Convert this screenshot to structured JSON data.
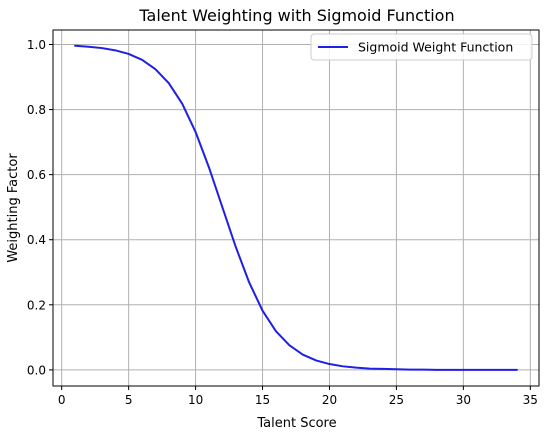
{
  "chart_data": {
    "type": "line",
    "title": "Talent Weighting with Sigmoid Function",
    "xlabel": "Talent Score",
    "ylabel": "Weighting Factor",
    "xlim": [
      -0.65,
      35.65
    ],
    "ylim": [
      -0.0495,
      1.0445
    ],
    "xticks": [
      0,
      5,
      10,
      15,
      20,
      25,
      30,
      35
    ],
    "yticks": [
      0.0,
      0.2,
      0.4,
      0.6,
      0.8,
      1.0
    ],
    "xtick_labels": [
      "0",
      "5",
      "10",
      "15",
      "20",
      "25",
      "30",
      "35"
    ],
    "ytick_labels": [
      "0.0",
      "0.2",
      "0.4",
      "0.6",
      "0.8",
      "1.0"
    ],
    "grid": true,
    "legend_position": "top-right",
    "series": [
      {
        "name": "Sigmoid Weight Function",
        "color": "#1f1fe6",
        "x": [
          1,
          2,
          3,
          4,
          5,
          6,
          7,
          8,
          9,
          10,
          11,
          12,
          13,
          14,
          15,
          16,
          17,
          18,
          19,
          20,
          21,
          22,
          23,
          24,
          25,
          26,
          27,
          28,
          29,
          30,
          31,
          32,
          33,
          34
        ],
        "y": [
          0.996,
          0.993,
          0.989,
          0.982,
          0.971,
          0.953,
          0.924,
          0.881,
          0.818,
          0.731,
          0.622,
          0.5,
          0.378,
          0.269,
          0.182,
          0.119,
          0.076,
          0.047,
          0.029,
          0.018,
          0.011,
          0.007,
          0.004,
          0.003,
          0.002,
          0.001,
          0.001,
          0.0,
          0.0,
          0.0,
          0.0,
          0.0,
          0.0,
          0.0
        ]
      }
    ]
  }
}
